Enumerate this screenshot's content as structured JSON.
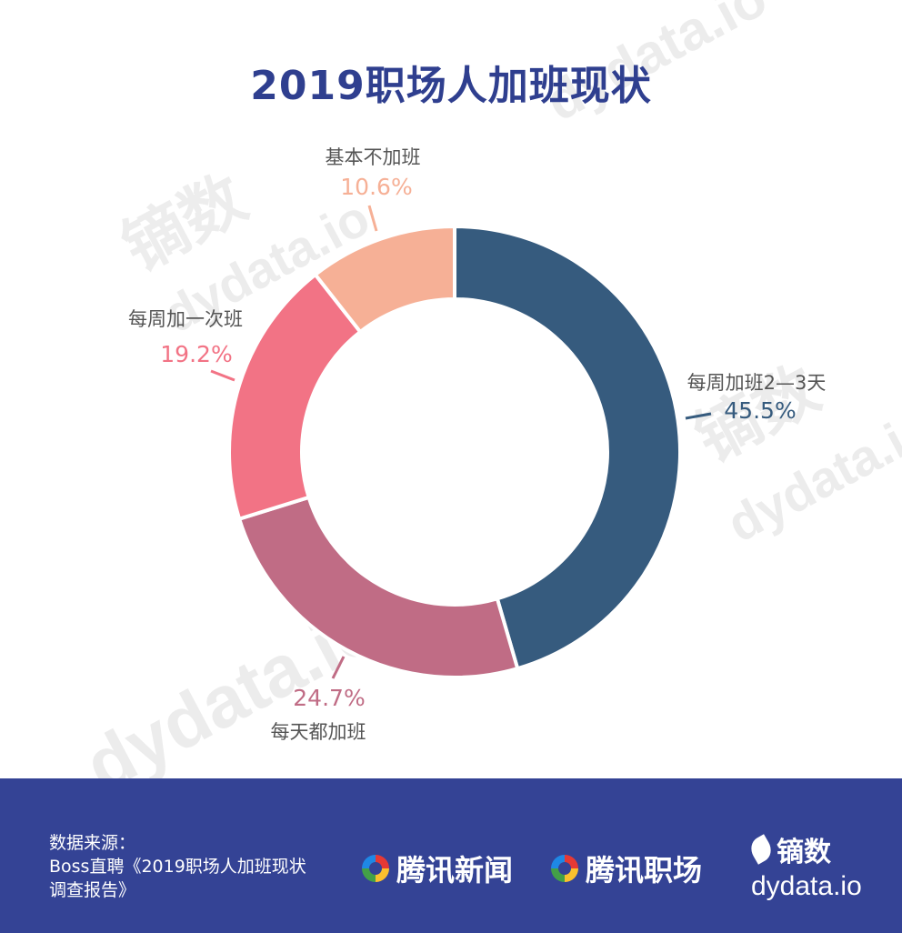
{
  "title": "2019职场人加班现状",
  "watermark": {
    "brand_cn": "镝数",
    "brand_en": "dydata.io"
  },
  "chart_data": {
    "type": "pie",
    "donut": true,
    "slices": [
      {
        "label": "每周加班2—3天",
        "value": 45.5,
        "pct_text": "45.5%",
        "color": "#365b7e"
      },
      {
        "label": "每天都加班",
        "value": 24.7,
        "pct_text": "24.7%",
        "color": "#c06c85"
      },
      {
        "label": "每周加一次班",
        "value": 19.2,
        "pct_text": "19.2%",
        "color": "#f27385"
      },
      {
        "label": "基本不加班",
        "value": 10.6,
        "pct_text": "10.6%",
        "color": "#f6b096"
      }
    ]
  },
  "footer": {
    "source_lines": [
      "数据来源：",
      "Boss直聘《2019职场人加班现状",
      "调查报告》"
    ],
    "brand1": "腾讯新闻",
    "brand2": "腾讯职场",
    "logo_cn": "镝数",
    "logo_en": "dydata.io"
  }
}
